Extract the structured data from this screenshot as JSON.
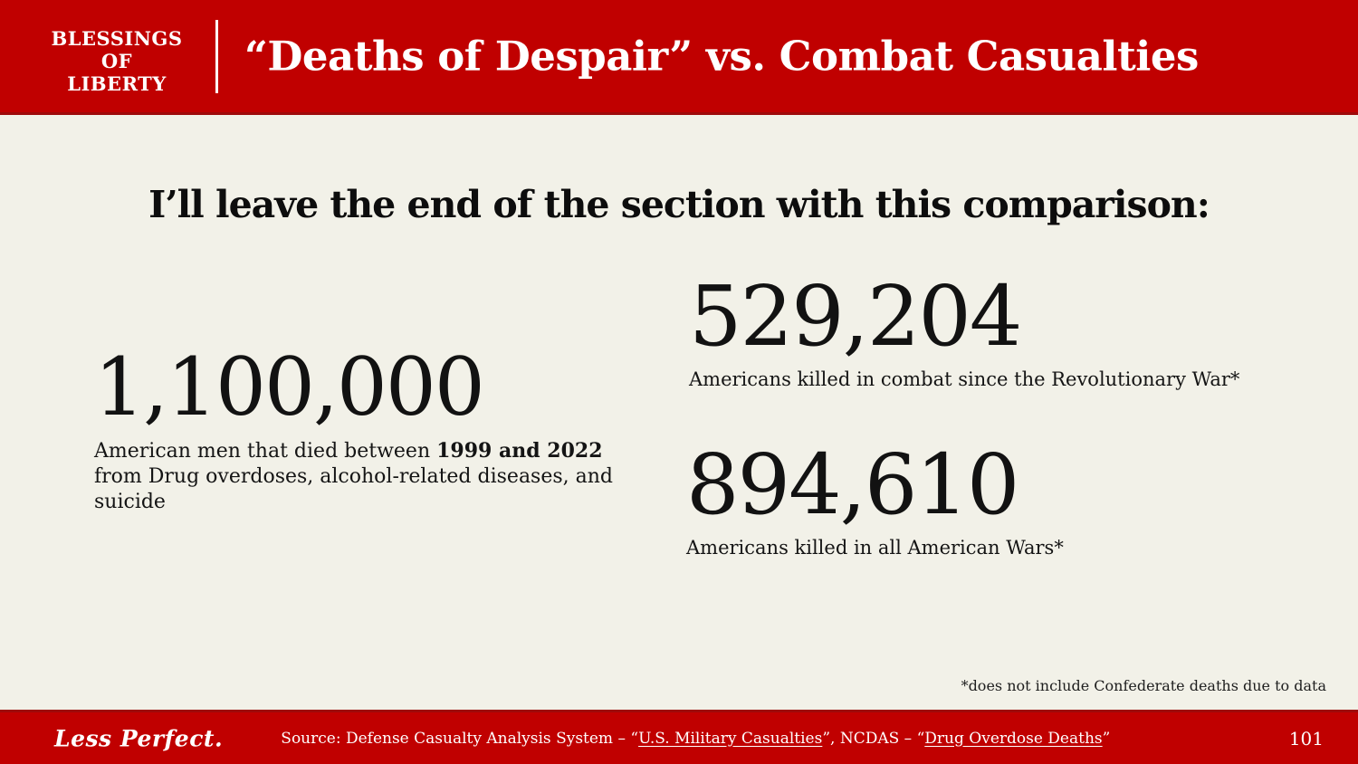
{
  "header": {
    "logo_line1": "BLESSINGS OF",
    "logo_line2": "LIBERTY",
    "title": "“Deaths of Despair” vs. Combat Casualties"
  },
  "main": {
    "heading": "I’ll leave the end of the section with this comparison:",
    "stats": {
      "despair": {
        "value": "1,100,000",
        "caption_part1": "American men that died between ",
        "caption_bold": "1999 and 2022",
        "caption_part2": " from Drug overdoses, alcohol-related diseases, and suicide"
      },
      "combat": {
        "value": "529,204",
        "caption": "Americans killed in combat since the Revolutionary War*"
      },
      "all_wars": {
        "value": "894,610",
        "caption": "Americans killed in all American Wars*"
      }
    },
    "footnote": "*does not include Confederate deaths due to data"
  },
  "footer": {
    "brand": "Less Perfect.",
    "source_prefix": "Source: Defense Casualty Analysis System – “",
    "source_link1": "U.S. Military Casualties",
    "source_mid": "”, NCDAS – “",
    "source_link2": "Drug Overdose Deaths",
    "source_suffix": "”",
    "page_number": "101"
  },
  "colors": {
    "accent_red": "#C00000",
    "accent_red_dark": "#9E0A0A",
    "background_cream": "#F2F1E8",
    "text_black": "#121212",
    "text_white": "#FFFFFF"
  }
}
